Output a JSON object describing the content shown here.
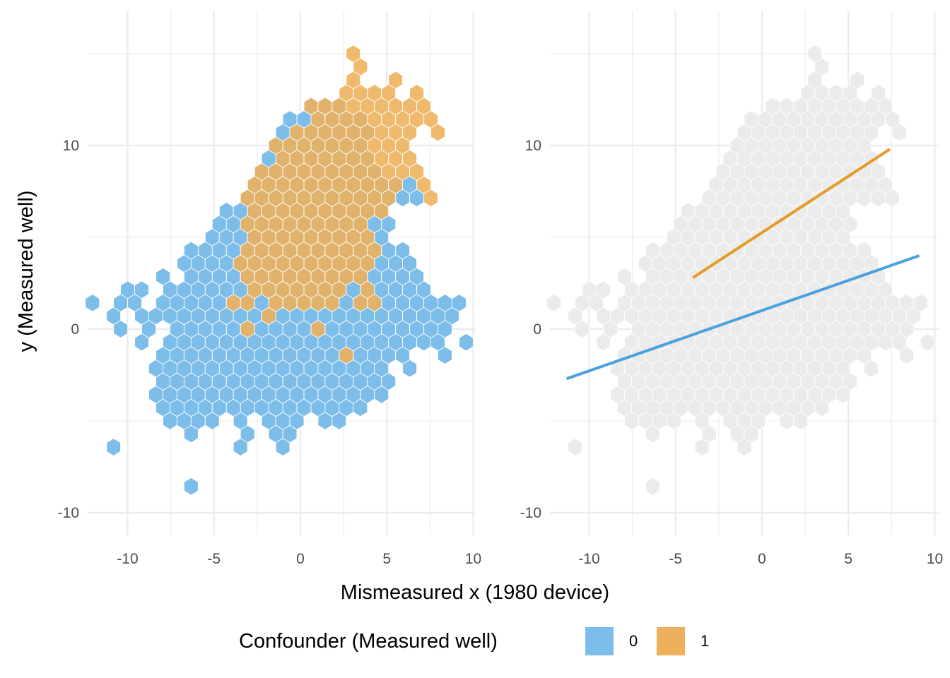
{
  "chart_data": {
    "type": "hexbin",
    "x_label": "Mismeasured x (1980 device)",
    "y_label": "y (Measured well)",
    "xlim": [
      -12.1,
      10.3
    ],
    "ylim": [
      -11.2,
      16.4
    ],
    "x_ticks": [
      -10,
      -5,
      0,
      5,
      10
    ],
    "y_ticks": [
      -10,
      0,
      10
    ],
    "x_tick_labels": [
      "-10",
      "-5",
      "0",
      "5",
      "10"
    ],
    "y_tick_labels": [
      "-10",
      "0",
      "10"
    ],
    "grid": true,
    "legend": {
      "title": "Confounder (Measured well)",
      "position": "bottom",
      "items": [
        {
          "label": "0",
          "color": "#7cbde9"
        },
        {
          "label": "1",
          "color": "#eeb05a"
        }
      ]
    },
    "colors": {
      "group0": "#7cbde9",
      "group1": "#eeb05a",
      "background_hex": "#ebebeb",
      "line0": "#4aa1de",
      "line1": "#e69a27"
    },
    "hex_bins": {
      "x0": -11.22,
      "y0": 0.0,
      "dx": 0.816,
      "dy": 0.714
    },
    "panels": [
      {
        "id": "left",
        "layers": [
          {
            "group": "0",
            "rows": [
              {
                "r": -12,
                "x": [
                  -6.1
                ]
              },
              {
                "r": -9,
                "x": [
                  -11.2,
                  -3.7,
                  -1.2
                ]
              },
              {
                "r": -8,
                "x": [
                  -6.5,
                  -3.3,
                  -1.6,
                  -0.8
                ]
              },
              {
                "r": -7,
                "x": [
                  -7.3,
                  -6.5,
                  -5.7,
                  -4.9,
                  -3.3,
                  -1.6,
                  -0.8,
                  0.0,
                  1.6,
                  2.4
                ]
              },
              {
                "r": -6,
                "x": [
                  -7.8,
                  -7.0,
                  -6.1,
                  -5.3,
                  -4.5,
                  -3.7,
                  -2.9,
                  -2.0,
                  -1.2,
                  -0.4,
                  0.4,
                  1.2,
                  2.0,
                  2.9,
                  3.7
                ]
              },
              {
                "r": -5,
                "x": [
                  -8.6,
                  -7.8,
                  -7.0,
                  -6.1,
                  -5.3,
                  -4.5,
                  -3.7,
                  -2.9,
                  -2.0,
                  -1.2,
                  -0.4,
                  0.4,
                  1.2,
                  2.0,
                  2.9,
                  3.7,
                  4.5
                ]
              },
              {
                "r": -4,
                "x": [
                  -8.2,
                  -7.3,
                  -6.5,
                  -5.7,
                  -4.9,
                  -4.1,
                  -3.3,
                  -2.4,
                  -1.6,
                  -0.8,
                  0.0,
                  0.8,
                  1.6,
                  2.4,
                  3.3,
                  4.1,
                  4.9
                ]
              },
              {
                "r": -3,
                "x": [
                  -8.6,
                  -7.8,
                  -7.0,
                  -6.1,
                  -5.3,
                  -4.5,
                  -3.7,
                  -2.9,
                  -2.0,
                  -1.2,
                  -0.4,
                  0.4,
                  1.2,
                  2.0,
                  2.9,
                  3.7,
                  4.5,
                  6.1
                ]
              },
              {
                "r": -2,
                "x": [
                  -8.2,
                  -7.3,
                  -6.5,
                  -5.7,
                  -4.9,
                  -4.1,
                  -3.3,
                  -2.4,
                  -1.6,
                  -0.8,
                  0.0,
                  0.8,
                  1.6,
                  2.4,
                  3.3,
                  4.1,
                  4.9,
                  5.7,
                  8.2
                ]
              },
              {
                "r": -1,
                "x": [
                  -9.0,
                  -7.8,
                  -7.0,
                  -6.1,
                  -5.3,
                  -4.5,
                  -3.7,
                  -2.9,
                  -2.0,
                  -1.2,
                  -0.4,
                  0.4,
                  1.2,
                  2.0,
                  2.9,
                  3.7,
                  4.5,
                  5.3,
                  6.1,
                  6.9,
                  7.8,
                  9.2
                ]
              },
              {
                "r": 0,
                "x": [
                  -10.2,
                  -8.6,
                  -7.3,
                  -6.5,
                  -5.7,
                  -4.9,
                  -4.1,
                  -3.3,
                  -2.4,
                  -1.6,
                  -0.8,
                  0.0,
                  0.8,
                  1.6,
                  2.4,
                  3.3,
                  4.1,
                  4.9,
                  5.7,
                  6.5,
                  7.3,
                  8.2
                ]
              },
              {
                "r": 1,
                "x": [
                  -11.0,
                  -9.4,
                  -8.6,
                  -7.8,
                  -7.0,
                  -6.1,
                  -5.3,
                  -4.5,
                  -3.7,
                  -2.9,
                  -2.0,
                  -1.2,
                  -0.4,
                  0.4,
                  1.2,
                  2.0,
                  2.9,
                  3.7,
                  4.5,
                  5.3,
                  6.1,
                  6.9,
                  7.8,
                  8.6
                ]
              },
              {
                "r": 2,
                "x": [
                  -11.8,
                  -10.2,
                  -9.4,
                  -8.2,
                  -7.3,
                  -6.5,
                  -5.7,
                  -4.9,
                  -4.1,
                  -3.3,
                  -2.4,
                  -1.6,
                  -0.8,
                  0.0,
                  0.8,
                  1.6,
                  2.4,
                  3.3,
                  4.1,
                  4.9,
                  5.7,
                  6.5,
                  7.3,
                  8.2,
                  9.0
                ]
              },
              {
                "r": 3,
                "x": [
                  -10.2,
                  -9.4,
                  -7.8,
                  -7.0,
                  -6.1,
                  -5.3,
                  -4.5,
                  -3.7,
                  -2.9,
                  -2.0,
                  -1.2,
                  -0.4,
                  0.4,
                  1.2,
                  2.0,
                  2.9,
                  3.7,
                  4.5,
                  5.3,
                  6.1,
                  6.9
                ]
              },
              {
                "r": 4,
                "x": [
                  -8.2,
                  -6.5,
                  -5.7,
                  -4.9,
                  -4.1,
                  -3.3,
                  -2.4,
                  -1.6,
                  -0.8,
                  0.0,
                  0.8,
                  1.6,
                  2.4,
                  3.3,
                  4.1,
                  4.9,
                  5.7,
                  6.5
                ]
              },
              {
                "r": 5,
                "x": [
                  -7.0,
                  -6.1,
                  -5.3,
                  -4.5,
                  -3.7,
                  -2.9,
                  -2.0,
                  -1.2,
                  -0.4,
                  0.4,
                  1.2,
                  2.0,
                  2.9,
                  3.7,
                  4.5,
                  5.3,
                  6.1
                ]
              },
              {
                "r": 6,
                "x": [
                  -6.5,
                  -5.7,
                  -4.9,
                  -4.1,
                  -3.3,
                  -2.4,
                  -1.6,
                  -0.8,
                  0.0,
                  0.8,
                  1.6,
                  2.4,
                  3.3,
                  4.1,
                  4.9,
                  5.7
                ]
              },
              {
                "r": 7,
                "x": [
                  -5.3,
                  -4.5,
                  -3.7,
                  -2.9,
                  -2.0,
                  -1.2,
                  -0.4,
                  0.4,
                  1.2,
                  2.0,
                  2.9,
                  3.7,
                  4.5
                ]
              },
              {
                "r": 8,
                "x": [
                  -4.9,
                  -4.1,
                  -3.3,
                  -2.4,
                  -1.6,
                  -0.8,
                  0.0,
                  0.8,
                  1.6,
                  2.4,
                  3.3,
                  4.1,
                  4.9
                ]
              },
              {
                "r": 9,
                "x": [
                  -4.5,
                  -3.7,
                  -2.9,
                  -2.0,
                  -1.2,
                  -0.4,
                  0.4,
                  1.2,
                  2.0,
                  2.9,
                  3.7,
                  4.5
                ]
              },
              {
                "r": 10,
                "x": [
                  -3.3,
                  -2.4,
                  -1.6,
                  -0.8,
                  0.0,
                  0.8,
                  1.6,
                  2.4,
                  3.3,
                  4.1,
                  4.9,
                  5.7,
                  6.5
                ]
              },
              {
                "r": 11,
                "x": [
                  -2.9,
                  -2.0,
                  -1.2,
                  -0.4,
                  0.4,
                  1.2,
                  2.0,
                  2.9,
                  3.7,
                  4.5,
                  5.3,
                  6.1
                ]
              },
              {
                "r": 12,
                "x": [
                  -2.4,
                  -1.6,
                  -0.8,
                  0.0,
                  0.8,
                  1.6,
                  2.4,
                  3.3,
                  4.1
                ]
              },
              {
                "r": 13,
                "x": [
                  -2.0,
                  -1.2,
                  -0.4,
                  0.4,
                  1.2,
                  2.0,
                  2.9,
                  3.7
                ]
              },
              {
                "r": 14,
                "x": [
                  -1.6,
                  -0.8,
                  0.0,
                  0.8,
                  1.6,
                  2.4,
                  3.3
                ]
              },
              {
                "r": 15,
                "x": [
                  -1.2,
                  -0.4,
                  0.4,
                  1.2,
                  2.0,
                  2.9,
                  3.7
                ]
              },
              {
                "r": 16,
                "x": [
                  -0.8,
                  0.0,
                  0.8,
                  1.6,
                  2.4,
                  3.3
                ]
              },
              {
                "r": 17,
                "x": [
                  0.4,
                  1.2,
                  2.0
                ]
              }
            ]
          },
          {
            "group": "1",
            "rows": [
              {
                "r": -2,
                "x": [
                  2.9
                ]
              },
              {
                "r": 0,
                "x": [
                  -3.3,
                  1.4
                ]
              },
              {
                "r": 1,
                "x": [
                  -1.8
                ]
              },
              {
                "r": 2,
                "x": [
                  -4.1,
                  -2.9,
                  -1.2,
                  -0.4,
                  0.4,
                  1.2,
                  2.0,
                  3.3,
                  4.5
                ]
              },
              {
                "r": 3,
                "x": [
                  -2.4,
                  -1.6,
                  -0.8,
                  0.0,
                  0.8,
                  1.6,
                  2.4,
                  4.1
                ]
              },
              {
                "r": 4,
                "x": [
                  -2.9,
                  -2.0,
                  -1.2,
                  -0.4,
                  0.4,
                  1.2,
                  2.0,
                  2.9,
                  3.7
                ]
              },
              {
                "r": 5,
                "x": [
                  -3.3,
                  -2.4,
                  -1.6,
                  -0.8,
                  0.0,
                  0.8,
                  1.6,
                  2.4,
                  3.3,
                  4.1
                ]
              },
              {
                "r": 6,
                "x": [
                  -2.9,
                  -2.0,
                  -1.2,
                  -0.4,
                  0.4,
                  1.2,
                  2.0,
                  2.9,
                  3.7,
                  4.5
                ]
              },
              {
                "r": 7,
                "x": [
                  -2.4,
                  -1.6,
                  -0.8,
                  0.0,
                  0.8,
                  1.6,
                  2.4,
                  3.3,
                  4.1
                ]
              },
              {
                "r": 8,
                "x": [
                  -2.9,
                  -2.0,
                  -1.2,
                  -0.4,
                  0.4,
                  1.2,
                  2.0,
                  2.9,
                  3.7
                ]
              },
              {
                "r": 9,
                "x": [
                  -2.4,
                  -1.6,
                  -0.8,
                  0.0,
                  0.8,
                  1.6,
                  2.4,
                  3.3,
                  4.1,
                  4.9
                ]
              },
              {
                "r": 10,
                "x": [
                  -2.9,
                  -2.0,
                  -1.2,
                  -0.4,
                  0.4,
                  1.2,
                  2.0,
                  2.9,
                  3.7,
                  4.5,
                  5.3,
                  7.3
                ]
              },
              {
                "r": 11,
                "x": [
                  -2.4,
                  -1.6,
                  -0.8,
                  0.0,
                  0.8,
                  1.6,
                  2.4,
                  3.3,
                  4.1,
                  4.9,
                  5.7,
                  6.9
                ]
              },
              {
                "r": 12,
                "x": [
                  -2.0,
                  -1.2,
                  -0.4,
                  0.4,
                  1.2,
                  2.0,
                  2.9,
                  3.7,
                  4.5,
                  5.3,
                  6.1,
                  6.9
                ]
              },
              {
                "r": 13,
                "x": [
                  -0.8,
                  0.0,
                  0.8,
                  1.6,
                  2.4,
                  3.3,
                  4.1,
                  4.9,
                  5.7,
                  6.5
                ]
              },
              {
                "r": 14,
                "x": [
                  -1.2,
                  -0.4,
                  0.4,
                  1.2,
                  2.0,
                  2.9,
                  3.7,
                  4.5,
                  5.3,
                  6.1
                ]
              },
              {
                "r": 15,
                "x": [
                  -0.4,
                  0.4,
                  1.2,
                  2.0,
                  2.9,
                  3.7,
                  4.5,
                  5.3,
                  6.1,
                  7.8
                ]
              },
              {
                "r": 16,
                "x": [
                  0.8,
                  1.6,
                  2.4,
                  3.3,
                  4.1,
                  4.9,
                  5.7,
                  6.9,
                  7.3
                ]
              },
              {
                "r": 17,
                "x": [
                  0.4,
                  1.2,
                  2.0,
                  2.9,
                  3.7,
                  4.5,
                  5.3,
                  6.5,
                  7.3
                ]
              },
              {
                "r": 18,
                "x": [
                  2.4,
                  3.3,
                  4.1,
                  5.3,
                  6.9
                ]
              },
              {
                "r": 19,
                "x": [
                  3.3,
                  5.7
                ]
              },
              {
                "r": 20,
                "x": [
                  3.7
                ]
              },
              {
                "r": 21,
                "x": [
                  3.3
                ]
              }
            ]
          }
        ]
      },
      {
        "id": "right",
        "background_hexes": "union of left panel hexes",
        "lines": [
          {
            "group": "0",
            "x": [
              -11.3,
              9.1
            ],
            "y": [
              -2.7,
              4.0
            ]
          },
          {
            "group": "1",
            "x": [
              -4.0,
              7.4
            ],
            "y": [
              2.8,
              9.8
            ]
          }
        ]
      }
    ]
  }
}
